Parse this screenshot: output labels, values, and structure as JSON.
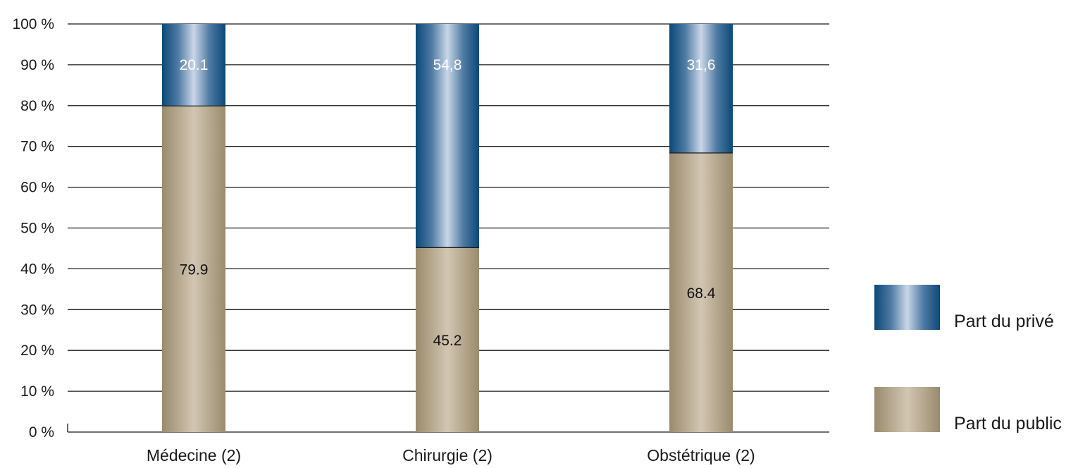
{
  "chart_data": {
    "type": "bar",
    "stacked": true,
    "categories": [
      "Médecine (2)",
      "Chirurgie (2)",
      "Obstétrique (2)"
    ],
    "series": [
      {
        "name": "Part du public",
        "values": [
          79.9,
          45.2,
          68.4
        ],
        "labels": [
          "79.9",
          "45.2",
          "68.4"
        ],
        "color": "#a6977a"
      },
      {
        "name": "Part du privé",
        "values": [
          20.1,
          54.8,
          31.6
        ],
        "labels": [
          "20.1",
          "54,8",
          "31,6"
        ],
        "color": "#0f4b7a"
      }
    ],
    "y_ticks": [
      "0 %",
      "10 %",
      "20 %",
      "30 %",
      "40 %",
      "50 %",
      "60 %",
      "70 %",
      "80 %",
      "90 %",
      "100 %"
    ],
    "ylim": [
      0,
      100
    ],
    "grid": true,
    "legend_order": [
      "Part du privé",
      "Part du public"
    ],
    "legend_position": "right"
  }
}
